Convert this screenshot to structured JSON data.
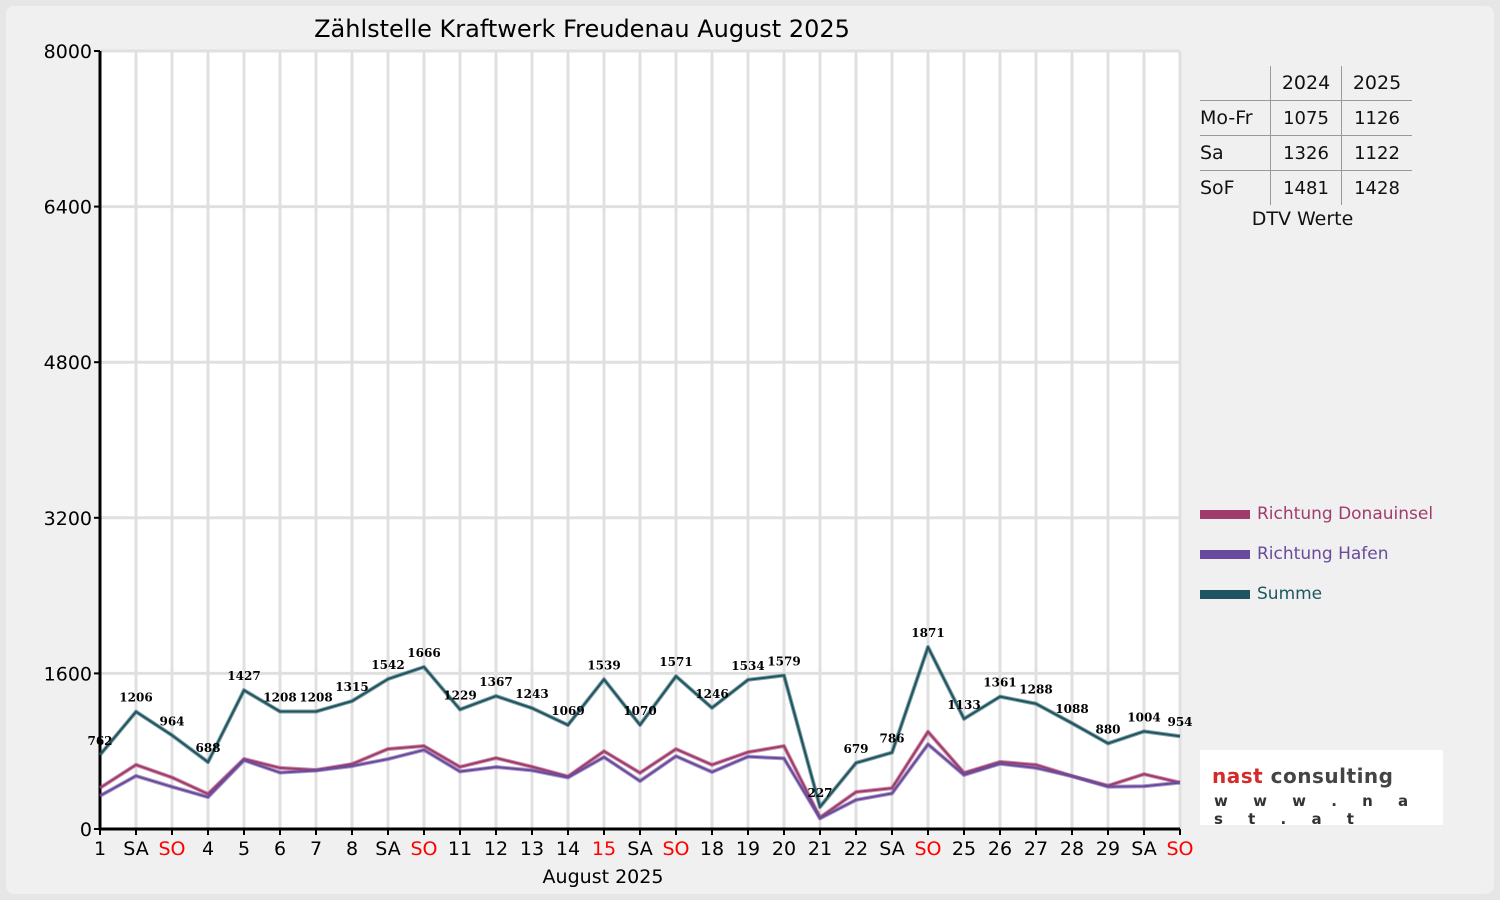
{
  "chart_data": {
    "type": "line",
    "title": "Zählstelle Kraftwerk Freudenau August 2025",
    "xlabel": "August 2025",
    "ylabel": "",
    "ylim": [
      0,
      8000
    ],
    "yticks": [
      0,
      1600,
      3200,
      4800,
      6400,
      8000
    ],
    "grid": true,
    "legend_position": "right",
    "categories": [
      "1",
      "SA",
      "SO",
      "4",
      "5",
      "6",
      "7",
      "8",
      "SA",
      "SO",
      "11",
      "12",
      "13",
      "14",
      "15",
      "SA",
      "SO",
      "18",
      "19",
      "20",
      "21",
      "22",
      "SA",
      "SO",
      "25",
      "26",
      "27",
      "28",
      "29",
      "SA",
      "SO"
    ],
    "red_categories": [
      2,
      9,
      14,
      16,
      23,
      30
    ],
    "series": [
      {
        "name": "Richtung Donauinsel",
        "color": "#a03c6c",
        "values": [
          422,
          660,
          530,
          360,
          720,
          628,
          607,
          668,
          823,
          853,
          638,
          730,
          640,
          540,
          800,
          577,
          822,
          660,
          790,
          853,
          118,
          380,
          420,
          1000,
          577,
          690,
          660,
          545,
          445,
          564,
          477
        ]
      },
      {
        "name": "Richtung Hafen",
        "color": "#6a4a9c",
        "values": [
          340,
          546,
          434,
          328,
          707,
          580,
          601,
          647,
          719,
          813,
          591,
          637,
          603,
          529,
          739,
          493,
          749,
          586,
          744,
          726,
          109,
          299,
          366,
          871,
          556,
          671,
          628,
          543,
          435,
          440,
          477
        ]
      },
      {
        "name": "Summe",
        "color": "#1f5560",
        "labeled": true,
        "values": [
          762,
          1206,
          964,
          688,
          1427,
          1208,
          1208,
          1315,
          1542,
          1666,
          1229,
          1367,
          1243,
          1069,
          1539,
          1070,
          1571,
          1246,
          1534,
          1579,
          227,
          679,
          786,
          1871,
          1133,
          1361,
          1288,
          1088,
          880,
          1004,
          954
        ]
      }
    ]
  },
  "dtv_table": {
    "header": [
      "",
      "2024",
      "2025"
    ],
    "rows": [
      {
        "label": "Mo-Fr",
        "v2024": "1075",
        "v2025": "1126"
      },
      {
        "label": "Sa",
        "v2024": "1326",
        "v2025": "1122"
      },
      {
        "label": "SoF",
        "v2024": "1481",
        "v2025": "1428"
      }
    ],
    "caption": "DTV Werte"
  },
  "logo": {
    "word1": "nast",
    "word2": "consulting",
    "url": "w w w . n a s t . a t"
  }
}
